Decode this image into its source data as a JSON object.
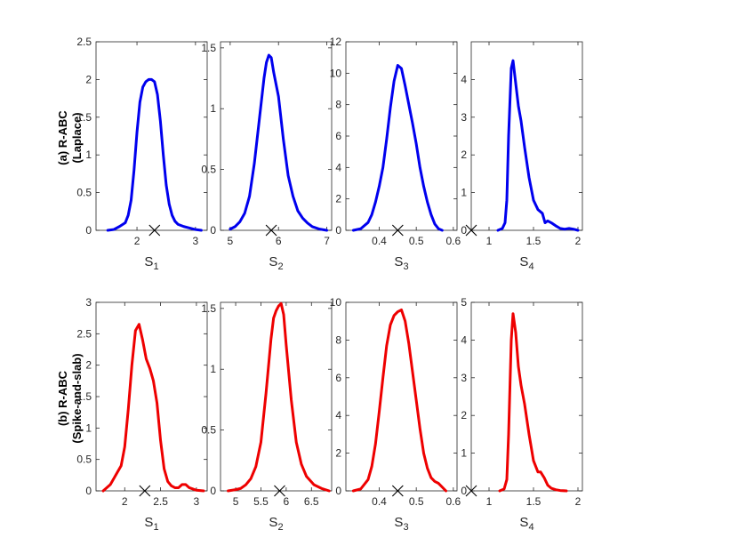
{
  "colors": {
    "row_a": "#0000ee",
    "row_b": "#ee0000",
    "marker": "#000000"
  },
  "row_labels": [
    {
      "line1": "(a) R-ABC",
      "line2": "(Laplace)"
    },
    {
      "line1": "(b) R-ABC",
      "line2": "(Spike-and-slab)"
    }
  ],
  "chart_data": [
    {
      "type": "line",
      "row": 0,
      "col": 0,
      "series_color": "#0000ee",
      "xlabel_base": "S",
      "xlabel_sub": "1",
      "xlim": [
        1.3,
        3.2
      ],
      "ylim": [
        0,
        2.5
      ],
      "xticks": [
        2,
        3
      ],
      "yticks": [
        0,
        0.5,
        1,
        1.5,
        2,
        2.5
      ],
      "true_value": 2.3,
      "x": [
        1.5,
        1.6,
        1.7,
        1.8,
        1.85,
        1.9,
        1.95,
        2.0,
        2.05,
        2.1,
        2.15,
        2.2,
        2.25,
        2.3,
        2.35,
        2.4,
        2.45,
        2.5,
        2.55,
        2.6,
        2.65,
        2.7,
        2.8,
        2.9,
        3.0,
        3.1
      ],
      "y": [
        0.0,
        0.01,
        0.05,
        0.1,
        0.2,
        0.4,
        0.8,
        1.3,
        1.7,
        1.9,
        1.97,
        2.0,
        2.0,
        1.97,
        1.8,
        1.45,
        1.0,
        0.6,
        0.35,
        0.2,
        0.12,
        0.08,
        0.05,
        0.03,
        0.01,
        0.0
      ]
    },
    {
      "type": "line",
      "row": 0,
      "col": 1,
      "series_color": "#0000ee",
      "xlabel_base": "S",
      "xlabel_sub": "2",
      "xlim": [
        4.8,
        7.1
      ],
      "ylim": [
        0,
        1.55
      ],
      "xticks": [
        5,
        6,
        7
      ],
      "yticks": [
        0,
        0.5,
        1,
        1.5
      ],
      "true_value": 5.85,
      "x": [
        5.0,
        5.1,
        5.2,
        5.3,
        5.4,
        5.5,
        5.6,
        5.7,
        5.75,
        5.8,
        5.85,
        5.9,
        6.0,
        6.1,
        6.2,
        6.3,
        6.4,
        6.5,
        6.6,
        6.7,
        6.85,
        7.0
      ],
      "y": [
        0.01,
        0.03,
        0.07,
        0.14,
        0.28,
        0.55,
        0.9,
        1.25,
        1.38,
        1.44,
        1.42,
        1.3,
        1.1,
        0.75,
        0.45,
        0.28,
        0.16,
        0.1,
        0.06,
        0.03,
        0.01,
        0.0
      ]
    },
    {
      "type": "line",
      "row": 0,
      "col": 2,
      "series_color": "#0000ee",
      "xlabel_base": "S",
      "xlabel_sub": "3",
      "xlim": [
        0.31,
        0.61
      ],
      "ylim": [
        0,
        12
      ],
      "xticks": [
        0.4,
        0.5,
        0.6
      ],
      "yticks": [
        0,
        2,
        4,
        6,
        8,
        10,
        12
      ],
      "true_value": 0.45,
      "x": [
        0.33,
        0.35,
        0.37,
        0.38,
        0.39,
        0.4,
        0.41,
        0.42,
        0.43,
        0.44,
        0.45,
        0.46,
        0.47,
        0.48,
        0.49,
        0.5,
        0.51,
        0.52,
        0.53,
        0.54,
        0.55,
        0.56,
        0.57
      ],
      "y": [
        0.0,
        0.1,
        0.5,
        1.0,
        1.8,
        2.8,
        4.0,
        5.8,
        7.8,
        9.5,
        10.5,
        10.3,
        9.2,
        8.0,
        6.8,
        5.5,
        4.0,
        2.8,
        1.8,
        1.0,
        0.4,
        0.1,
        0.0
      ]
    },
    {
      "type": "line",
      "row": 0,
      "col": 3,
      "series_color": "#0000ee",
      "xlabel_base": "S",
      "xlabel_sub": "4",
      "xlim": [
        0.8,
        2.05
      ],
      "ylim": [
        0,
        5
      ],
      "xticks": [
        1,
        1.5,
        2
      ],
      "yticks": [
        0,
        1,
        2,
        3,
        4
      ],
      "true_value": 0.8,
      "x": [
        1.1,
        1.15,
        1.18,
        1.2,
        1.22,
        1.25,
        1.27,
        1.3,
        1.33,
        1.36,
        1.4,
        1.45,
        1.5,
        1.55,
        1.6,
        1.63,
        1.66,
        1.7,
        1.75,
        1.8,
        1.85,
        1.9,
        1.95,
        2.0
      ],
      "y": [
        0.0,
        0.05,
        0.2,
        0.8,
        2.5,
        4.3,
        4.5,
        3.9,
        3.3,
        2.9,
        2.2,
        1.4,
        0.8,
        0.55,
        0.45,
        0.2,
        0.25,
        0.2,
        0.12,
        0.05,
        0.03,
        0.05,
        0.03,
        0.0
      ]
    },
    {
      "type": "line",
      "row": 1,
      "col": 0,
      "series_color": "#ee0000",
      "xlabel_base": "S",
      "xlabel_sub": "1",
      "xlim": [
        1.6,
        3.15
      ],
      "ylim": [
        0,
        3
      ],
      "xticks": [
        2,
        2.5,
        3
      ],
      "yticks": [
        0,
        0.5,
        1,
        1.5,
        2,
        2.5,
        3
      ],
      "true_value": 2.28,
      "x": [
        1.7,
        1.8,
        1.9,
        1.95,
        2.0,
        2.05,
        2.1,
        2.15,
        2.2,
        2.25,
        2.3,
        2.35,
        2.4,
        2.45,
        2.5,
        2.55,
        2.6,
        2.65,
        2.7,
        2.75,
        2.8,
        2.85,
        2.9,
        3.0,
        3.1
      ],
      "y": [
        0.0,
        0.1,
        0.3,
        0.4,
        0.7,
        1.3,
        2.0,
        2.55,
        2.65,
        2.4,
        2.1,
        1.95,
        1.75,
        1.4,
        0.8,
        0.35,
        0.15,
        0.08,
        0.05,
        0.05,
        0.1,
        0.1,
        0.05,
        0.01,
        0.0
      ]
    },
    {
      "type": "line",
      "row": 1,
      "col": 1,
      "series_color": "#ee0000",
      "xlabel_base": "S",
      "xlabel_sub": "2",
      "xlim": [
        4.7,
        6.9
      ],
      "ylim": [
        0,
        1.55
      ],
      "xticks": [
        5,
        5.5,
        6,
        6.5
      ],
      "yticks": [
        0,
        0.5,
        1,
        1.5
      ],
      "true_value": 5.87,
      "x": [
        4.85,
        5.0,
        5.1,
        5.2,
        5.3,
        5.4,
        5.5,
        5.6,
        5.7,
        5.75,
        5.8,
        5.85,
        5.9,
        5.95,
        6.0,
        6.1,
        6.2,
        6.3,
        6.4,
        6.55,
        6.7,
        6.85
      ],
      "y": [
        0.0,
        0.01,
        0.02,
        0.05,
        0.1,
        0.2,
        0.4,
        0.8,
        1.25,
        1.42,
        1.48,
        1.52,
        1.54,
        1.45,
        1.2,
        0.75,
        0.4,
        0.22,
        0.12,
        0.05,
        0.02,
        0.0
      ]
    },
    {
      "type": "line",
      "row": 1,
      "col": 2,
      "series_color": "#ee0000",
      "xlabel_base": "S",
      "xlabel_sub": "3",
      "xlim": [
        0.31,
        0.61
      ],
      "ylim": [
        0,
        10
      ],
      "xticks": [
        0.4,
        0.5,
        0.6
      ],
      "yticks": [
        0,
        2,
        4,
        6,
        8,
        10
      ],
      "true_value": 0.45,
      "x": [
        0.33,
        0.35,
        0.37,
        0.38,
        0.39,
        0.4,
        0.41,
        0.42,
        0.43,
        0.44,
        0.45,
        0.46,
        0.47,
        0.48,
        0.49,
        0.5,
        0.51,
        0.52,
        0.53,
        0.54,
        0.55,
        0.56,
        0.57,
        0.58
      ],
      "y": [
        0.0,
        0.1,
        0.6,
        1.3,
        2.5,
        4.2,
        6.0,
        7.7,
        8.8,
        9.3,
        9.5,
        9.6,
        9.0,
        7.8,
        6.3,
        4.8,
        3.3,
        2.0,
        1.2,
        0.7,
        0.5,
        0.4,
        0.2,
        0.0
      ]
    },
    {
      "type": "line",
      "row": 1,
      "col": 3,
      "series_color": "#ee0000",
      "xlabel_base": "S",
      "xlabel_sub": "4",
      "xlim": [
        0.8,
        2.05
      ],
      "ylim": [
        0,
        5
      ],
      "xticks": [
        1,
        1.5,
        2
      ],
      "yticks": [
        0,
        1,
        2,
        3,
        4,
        5
      ],
      "true_value": 0.8,
      "x": [
        1.12,
        1.17,
        1.2,
        1.22,
        1.25,
        1.27,
        1.3,
        1.33,
        1.36,
        1.4,
        1.45,
        1.5,
        1.55,
        1.58,
        1.62,
        1.66,
        1.7,
        1.75,
        1.8,
        1.87
      ],
      "y": [
        0.0,
        0.05,
        0.3,
        1.5,
        4.0,
        4.7,
        4.2,
        3.3,
        2.8,
        2.3,
        1.5,
        0.8,
        0.5,
        0.5,
        0.35,
        0.15,
        0.07,
        0.03,
        0.01,
        0.0
      ]
    }
  ]
}
